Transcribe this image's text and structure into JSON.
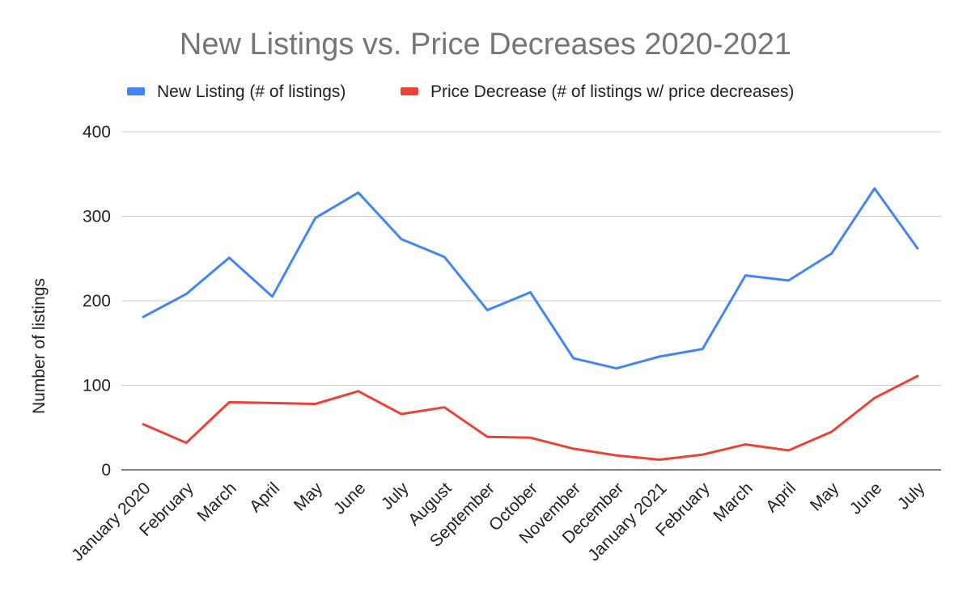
{
  "chart_data": {
    "type": "line",
    "title": "New Listings vs. Price Decreases 2020-2021",
    "xlabel": "",
    "ylabel": "Number of listings",
    "ylim": [
      0,
      400
    ],
    "yticks": [
      "0",
      "100",
      "200",
      "300",
      "400"
    ],
    "grid": true,
    "legend_position": "top",
    "categories": [
      "January 2020",
      "February",
      "March",
      "April",
      "May",
      "June",
      "July",
      "August",
      "September",
      "October",
      "November",
      "December",
      "January 2021",
      "February",
      "March",
      "April",
      "May",
      "June",
      "July"
    ],
    "series": [
      {
        "name": "New Listing (# of listings)",
        "color": "#4285f4",
        "values": [
          181,
          208,
          251,
          205,
          298,
          328,
          273,
          252,
          189,
          210,
          132,
          120,
          134,
          143,
          230,
          224,
          256,
          333,
          262
        ]
      },
      {
        "name": "Price Decrease (# of listings w/ price decreases)",
        "color": "#ea4335",
        "values": [
          54,
          32,
          80,
          79,
          78,
          93,
          66,
          74,
          39,
          38,
          25,
          17,
          12,
          18,
          30,
          23,
          45,
          85,
          111
        ]
      }
    ]
  }
}
